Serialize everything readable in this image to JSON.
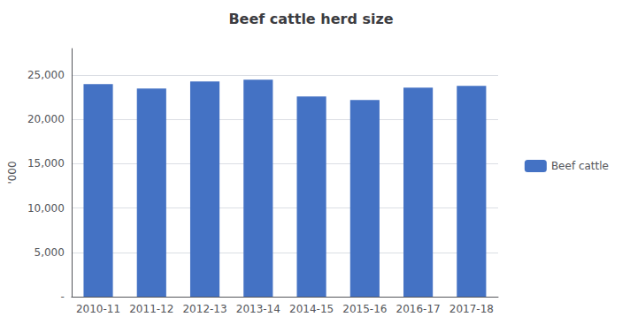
{
  "chart_data": {
    "type": "bar",
    "title": "Beef cattle herd size",
    "ylabel": "'000",
    "categories": [
      "2010-11",
      "2011-12",
      "2012-13",
      "2013-14",
      "2014-15",
      "2015-16",
      "2016-17",
      "2017-18"
    ],
    "series": [
      {
        "name": "Beef cattle",
        "color": "#4472C4",
        "values": [
          24000,
          23500,
          24300,
          24500,
          22600,
          22200,
          23600,
          23800
        ]
      }
    ],
    "ylim": [
      0,
      28000
    ],
    "yticks": [
      {
        "value": 0,
        "label": "-"
      },
      {
        "value": 5000,
        "label": "5,000"
      },
      {
        "value": 10000,
        "label": "10,000"
      },
      {
        "value": 15000,
        "label": "15,000"
      },
      {
        "value": 20000,
        "label": "20,000"
      },
      {
        "value": 25000,
        "label": "25,000"
      }
    ],
    "grid": true,
    "legend": "right"
  }
}
